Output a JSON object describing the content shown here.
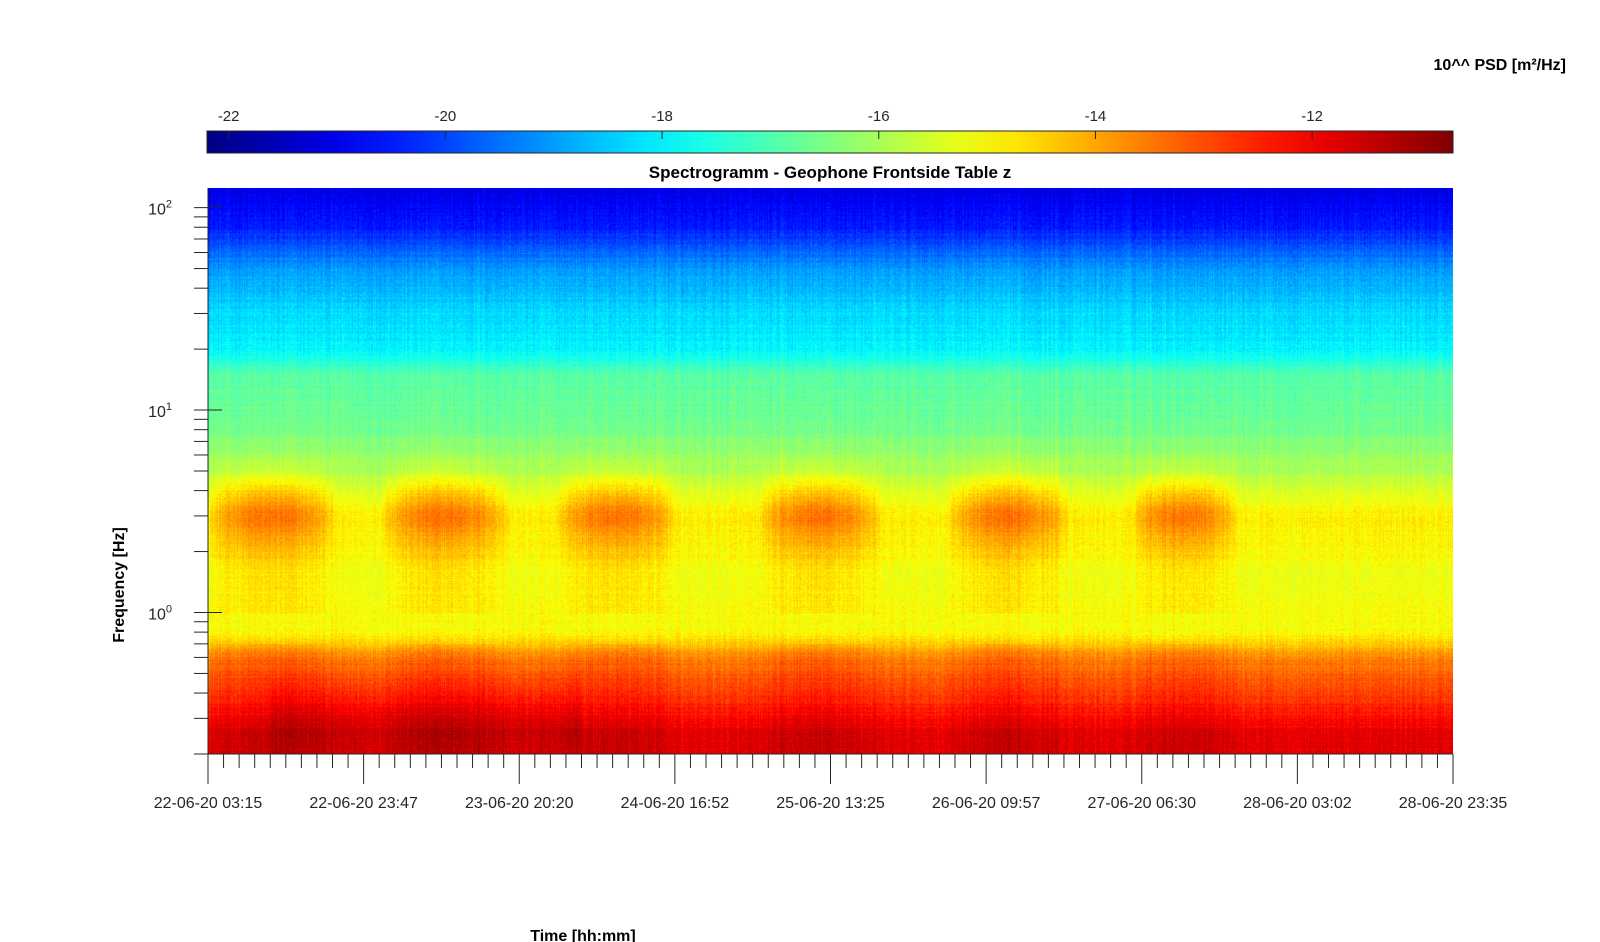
{
  "chart_data": {
    "type": "heatmap",
    "title": "Spectrogramm - Geophone Frontside Table z",
    "xlabel": "Time [hh:mm]",
    "ylabel": "Frequency [Hz]",
    "colorbar_label": "10^^ PSD [m²/Hz]",
    "y_scale": "log",
    "y_tick_labels": [
      {
        "base": "10",
        "exp": "2",
        "value": 100
      },
      {
        "base": "10",
        "exp": "1",
        "value": 10
      },
      {
        "base": "10",
        "exp": "0",
        "value": 1
      }
    ],
    "ylim": [
      0.2,
      125
    ],
    "x_tick_labels": [
      "22-06-20 03:15",
      "22-06-20 23:47",
      "23-06-20 20:20",
      "24-06-20 16:52",
      "25-06-20 13:25",
      "26-06-20 09:57",
      "27-06-20 06:30",
      "28-06-20 03:02",
      "28-06-20 23:35"
    ],
    "colorbar": {
      "ticks": [
        -22,
        -20,
        -18,
        -16,
        -14,
        -12
      ],
      "range": [
        -22.2,
        -10.7
      ],
      "colormap": "jet",
      "placement": "top"
    },
    "psd_profile_by_frequency": [
      {
        "frequency_hz": 120,
        "log10_psd": -21.0
      },
      {
        "frequency_hz": 80,
        "log10_psd": -20.5
      },
      {
        "frequency_hz": 50,
        "log10_psd": -19.0
      },
      {
        "frequency_hz": 30,
        "log10_psd": -18.3
      },
      {
        "frequency_hz": 20,
        "log10_psd": -18.0
      },
      {
        "frequency_hz": 15,
        "log10_psd": -16.9
      },
      {
        "frequency_hz": 8,
        "log10_psd": -16.6
      },
      {
        "frequency_hz": 5,
        "log10_psd": -15.9
      },
      {
        "frequency_hz": 3,
        "log10_psd": -14.8
      },
      {
        "frequency_hz": 1.5,
        "log10_psd": -15.2
      },
      {
        "frequency_hz": 0.8,
        "log10_psd": -15.0
      },
      {
        "frequency_hz": 0.6,
        "log10_psd": -13.6
      },
      {
        "frequency_hz": 0.4,
        "log10_psd": -12.8
      },
      {
        "frequency_hz": 0.25,
        "log10_psd": -11.8
      }
    ],
    "daytime_activity_windows": [
      {
        "start": "22-06-20 03:15",
        "end": "22-06-20 20:00",
        "log10_psd_at_3hz": -13.8
      },
      {
        "start": "23-06-20 02:00",
        "end": "23-06-20 19:00",
        "log10_psd_at_3hz": -13.8
      },
      {
        "start": "24-06-20 01:00",
        "end": "24-06-20 17:00",
        "log10_psd_at_3hz": -13.8
      },
      {
        "start": "25-06-20 04:00",
        "end": "25-06-20 20:00",
        "log10_psd_at_3hz": -13.8
      },
      {
        "start": "26-06-20 05:00",
        "end": "26-06-20 21:00",
        "log10_psd_at_3hz": -13.8
      },
      {
        "start": "27-06-20 05:00",
        "end": "27-06-20 19:00",
        "log10_psd_at_3hz": -13.8
      }
    ]
  }
}
